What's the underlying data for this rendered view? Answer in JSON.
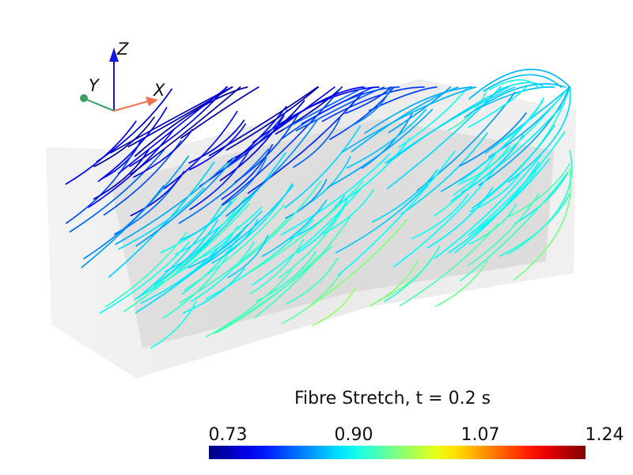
{
  "viewer": {
    "title": "",
    "axes": {
      "x_label": "X",
      "y_label": "Y",
      "z_label": "Z"
    },
    "colors": {
      "x_axis": "#f07050",
      "y_axis": "#3aa060",
      "z_axis": "#1515e0"
    }
  },
  "colorbar": {
    "title": "Fibre Stretch, t = 0.2 s",
    "ticks": [
      "0.73",
      "0.90",
      "1.07",
      "1.24"
    ],
    "range": [
      0.73,
      1.24
    ],
    "colormap": "jet"
  }
}
